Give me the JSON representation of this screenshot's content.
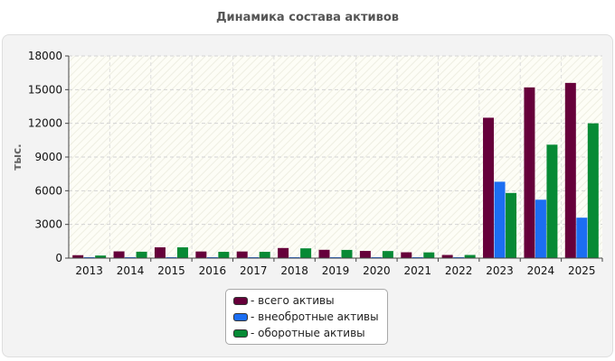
{
  "chart_data": {
    "type": "bar",
    "title": "Динамика состава активов",
    "ylabel": "тыс.",
    "xlabel": "",
    "ylim": [
      0,
      18000
    ],
    "yticks": [
      "18000",
      "15000",
      "12000",
      "9000",
      "6000",
      "3000",
      "0"
    ],
    "categories": [
      "2013",
      "2014",
      "2015",
      "2016",
      "2017",
      "2018",
      "2019",
      "2020",
      "2021",
      "2022",
      "2023",
      "2024",
      "2025"
    ],
    "series": [
      {
        "name": "- всего активы",
        "color": "#66003a",
        "values": [
          260,
          600,
          960,
          590,
          590,
          900,
          740,
          640,
          520,
          280,
          12500,
          15200,
          15600
        ]
      },
      {
        "name": "- внеобротные активы",
        "color": "#1c6ef2",
        "values": [
          60,
          40,
          50,
          40,
          40,
          50,
          40,
          40,
          40,
          40,
          6800,
          5200,
          3600
        ]
      },
      {
        "name": "- оборотные активы",
        "color": "#078a35",
        "values": [
          230,
          570,
          960,
          560,
          560,
          870,
          730,
          630,
          510,
          280,
          5800,
          10100,
          12000
        ]
      }
    ],
    "grid": true,
    "legend_position": "bottom"
  }
}
